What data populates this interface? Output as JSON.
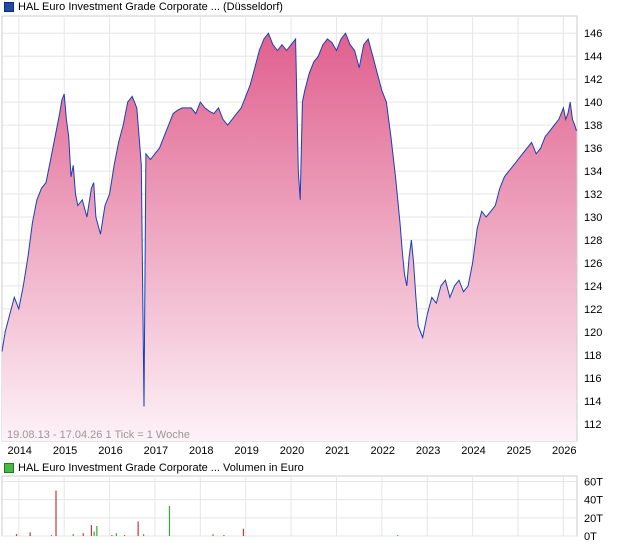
{
  "chart_data": [
    {
      "type": "area",
      "title": "HAL Euro Investment Grade Corporate ... (Düsseldorf)",
      "caption": "19.08.13 - 17.04.26   1 Tick = 1 Woche",
      "x_tick_labels": [
        "2014",
        "2015",
        "2016",
        "2017",
        "2018",
        "2019",
        "2020",
        "2021",
        "2022",
        "2023",
        "2024",
        "2025",
        "2026"
      ],
      "y_tick_labels": [
        "112",
        "114",
        "116",
        "118",
        "120",
        "122",
        "124",
        "126",
        "128",
        "130",
        "132",
        "134",
        "136",
        "138",
        "140",
        "142",
        "144",
        "146"
      ],
      "ylim": [
        110.5,
        147.5
      ],
      "xlim": [
        2013.63,
        2026.3
      ],
      "grid": true,
      "colors": {
        "line": "#1a3fb5",
        "fill_top": "#e0608e",
        "fill_bottom": "#fdf2f7",
        "legend": "#1f4aa8"
      },
      "series": [
        {
          "name": "HAL Euro Investment Grade Corporate ... (Düsseldorf)",
          "x": [
            2013.63,
            2013.7,
            2013.8,
            2013.9,
            2014.0,
            2014.1,
            2014.2,
            2014.3,
            2014.4,
            2014.5,
            2014.6,
            2014.7,
            2014.8,
            2014.9,
            2014.95,
            2015.0,
            2015.05,
            2015.1,
            2015.15,
            2015.2,
            2015.25,
            2015.3,
            2015.4,
            2015.5,
            2015.6,
            2015.65,
            2015.7,
            2015.8,
            2015.9,
            2016.0,
            2016.1,
            2016.2,
            2016.3,
            2016.4,
            2016.5,
            2016.6,
            2016.65,
            2016.7,
            2016.76,
            2016.8,
            2016.9,
            2017.0,
            2017.1,
            2017.2,
            2017.3,
            2017.4,
            2017.5,
            2017.6,
            2017.7,
            2017.8,
            2017.9,
            2018.0,
            2018.1,
            2018.2,
            2018.3,
            2018.4,
            2018.5,
            2018.6,
            2018.7,
            2018.8,
            2018.9,
            2019.0,
            2019.1,
            2019.2,
            2019.3,
            2019.4,
            2019.5,
            2019.6,
            2019.7,
            2019.8,
            2019.9,
            2020.0,
            2020.1,
            2020.16,
            2020.2,
            2020.25,
            2020.3,
            2020.4,
            2020.5,
            2020.6,
            2020.7,
            2020.8,
            2020.9,
            2021.0,
            2021.1,
            2021.2,
            2021.3,
            2021.4,
            2021.5,
            2021.6,
            2021.7,
            2021.8,
            2021.9,
            2022.0,
            2022.1,
            2022.2,
            2022.3,
            2022.4,
            2022.45,
            2022.5,
            2022.55,
            2022.6,
            2022.65,
            2022.7,
            2022.75,
            2022.8,
            2022.9,
            2023.0,
            2023.1,
            2023.2,
            2023.3,
            2023.4,
            2023.5,
            2023.6,
            2023.7,
            2023.8,
            2023.9,
            2024.0,
            2024.1,
            2024.2,
            2024.3,
            2024.4,
            2024.5,
            2024.6,
            2024.7,
            2024.8,
            2024.9,
            2025.0,
            2025.1,
            2025.2,
            2025.3,
            2025.4,
            2025.5,
            2025.6,
            2025.7,
            2025.8,
            2025.9,
            2026.0,
            2026.05,
            2026.1,
            2026.15,
            2026.2,
            2026.25,
            2026.29
          ],
          "values": [
            118.3,
            120.0,
            121.5,
            123.0,
            122.0,
            124.0,
            126.5,
            129.5,
            131.5,
            132.5,
            133.0,
            135.0,
            137.0,
            139.0,
            140.2,
            140.7,
            138.5,
            137.0,
            133.5,
            134.5,
            132.0,
            131.0,
            131.5,
            130.0,
            132.5,
            133.0,
            130.0,
            128.5,
            131.0,
            132.0,
            134.5,
            136.5,
            138.0,
            140.0,
            140.5,
            139.5,
            137.0,
            134.5,
            113.5,
            135.5,
            135.0,
            135.5,
            136.0,
            137.0,
            138.0,
            139.0,
            139.3,
            139.5,
            139.5,
            139.5,
            139.0,
            140.0,
            139.5,
            139.2,
            139.0,
            139.5,
            138.5,
            138.0,
            138.5,
            139.0,
            139.5,
            140.5,
            141.5,
            143.0,
            144.5,
            145.5,
            146.0,
            145.0,
            144.5,
            145.0,
            144.5,
            145.0,
            145.5,
            134.0,
            131.5,
            140.0,
            141.0,
            142.5,
            143.5,
            144.0,
            145.0,
            145.5,
            145.2,
            144.5,
            145.5,
            146.0,
            145.0,
            144.5,
            143.0,
            145.0,
            145.5,
            144.0,
            142.5,
            141.0,
            140.0,
            137.0,
            133.5,
            129.5,
            127.0,
            125.0,
            124.0,
            126.5,
            128.0,
            126.0,
            123.0,
            120.5,
            119.5,
            121.5,
            123.0,
            122.5,
            124.0,
            124.5,
            123.0,
            124.0,
            124.5,
            123.5,
            124.0,
            126.0,
            129.0,
            130.5,
            130.0,
            130.5,
            131.0,
            132.5,
            133.5,
            134.0,
            134.5,
            135.0,
            135.5,
            136.0,
            136.5,
            135.5,
            136.0,
            137.0,
            137.5,
            138.0,
            138.5,
            139.5,
            138.5,
            139.0,
            140.0,
            138.5,
            138.0,
            137.5
          ]
        }
      ]
    },
    {
      "type": "bar",
      "title": "HAL Euro Investment Grade Corporate ... Volumen in Euro",
      "y_tick_labels": [
        "0T",
        "20T",
        "40T",
        "60T"
      ],
      "ylim": [
        0,
        66
      ],
      "grid": true,
      "colors": {
        "legend": "#33aa33",
        "buy": "#cc3333",
        "sell": "#33aa33"
      },
      "series": [
        {
          "name": "Volumen",
          "x": [
            2013.95,
            2014.25,
            2014.72,
            2014.82,
            2015.2,
            2015.42,
            2015.6,
            2015.66,
            2015.72,
            2016.05,
            2016.15,
            2016.33,
            2016.63,
            2016.75,
            2017.32,
            2018.28,
            2018.52,
            2018.95,
            2022.35
          ],
          "values": [
            2,
            4,
            1,
            50,
            2,
            3,
            12,
            5,
            11,
            1,
            3,
            1,
            16,
            2,
            33,
            2,
            1,
            8,
            1
          ],
          "colors": [
            "#cc3333",
            "#cc3333",
            "#33aa33",
            "#cc3333",
            "#33aa33",
            "#cc3333",
            "#cc3333",
            "#33aa33",
            "#33aa33",
            "#cc3333",
            "#33aa33",
            "#cc3333",
            "#cc3333",
            "#33aa33",
            "#33aa33",
            "#33aa33",
            "#cc3333",
            "#cc3333",
            "#33aa33"
          ]
        }
      ]
    }
  ]
}
